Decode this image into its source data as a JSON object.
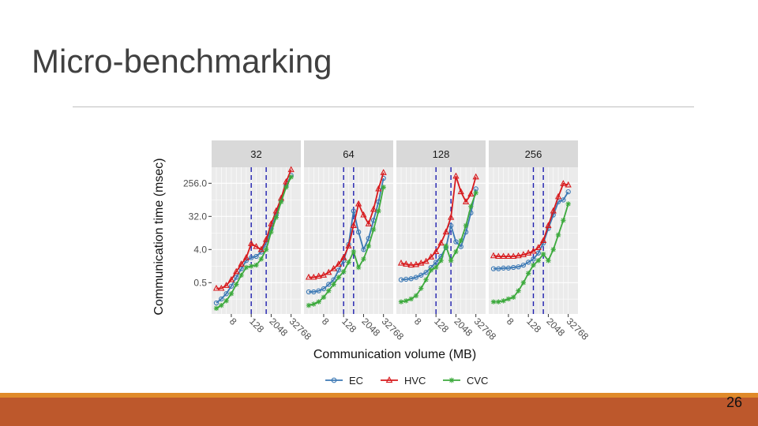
{
  "slide": {
    "title": "Micro-benchmarking",
    "page_number": "26"
  },
  "chart_data": {
    "type": "line",
    "facets": [
      "32",
      "64",
      "128",
      "256"
    ],
    "xlabel": "Communication volume (MB)",
    "ylabel": "Communication time (msec)",
    "y_scale": "log2",
    "ylim": [
      0.07,
      700
    ],
    "yticks": [
      0.5,
      4.0,
      32.0,
      256.0
    ],
    "ytick_labels": [
      "0.5",
      "4.0",
      "32.0",
      "256.0"
    ],
    "x_scale": "log2",
    "xlim": [
      1,
      65536
    ],
    "xticks": [
      8,
      128,
      2048,
      32768
    ],
    "xtick_labels": [
      "8",
      "128",
      "2048",
      "32768"
    ],
    "x": [
      1,
      2,
      4,
      8,
      16,
      32,
      64,
      128,
      256,
      512,
      1024,
      2048,
      4096,
      8192,
      16384,
      32768
    ],
    "vlines_by_facet": [
      [
        128,
        1024
      ],
      [
        128,
        512
      ],
      [
        128,
        1024
      ],
      [
        256,
        1024
      ]
    ],
    "grid": true,
    "legend_position": "bottom",
    "colors": {
      "EC": "#3b78b4",
      "HVC": "#d7191c",
      "CVC": "#3daa3d",
      "panel_bg": "#ebebeb",
      "strip_bg": "#d9d9d9",
      "vline": "#1f1fb0"
    },
    "series": [
      {
        "name": "EC",
        "marker": "circle",
        "values_by_facet": [
          [
            0.14,
            0.18,
            0.25,
            0.4,
            0.7,
            1.2,
            2.0,
            2.4,
            2.6,
            3.4,
            6.0,
            15,
            35,
            90,
            220,
            420
          ],
          [
            0.28,
            0.28,
            0.3,
            0.34,
            0.45,
            0.6,
            1.1,
            2.0,
            5.5,
            45,
            12,
            4.0,
            8.0,
            25,
            80,
            350
          ],
          [
            0.6,
            0.62,
            0.64,
            0.7,
            0.8,
            0.95,
            1.3,
            1.8,
            2.6,
            4.5,
            18,
            6.5,
            4.8,
            12,
            40,
            180
          ],
          [
            1.2,
            1.2,
            1.25,
            1.25,
            1.3,
            1.35,
            1.5,
            1.8,
            2.2,
            3.2,
            6.0,
            15,
            35,
            80,
            90,
            150
          ]
        ]
      },
      {
        "name": "HVC",
        "marker": "triangle",
        "values_by_facet": [
          [
            0.35,
            0.35,
            0.42,
            0.6,
            1.0,
            1.6,
            2.4,
            5.8,
            4.8,
            4.0,
            7.5,
            20,
            45,
            100,
            280,
            600
          ],
          [
            0.7,
            0.7,
            0.75,
            0.8,
            0.95,
            1.2,
            1.6,
            2.4,
            5.0,
            18,
            70,
            35,
            20,
            50,
            180,
            500
          ],
          [
            1.7,
            1.6,
            1.5,
            1.55,
            1.7,
            1.9,
            2.5,
            3.5,
            6.0,
            12,
            30,
            400,
            150,
            80,
            130,
            380
          ],
          [
            2.7,
            2.6,
            2.6,
            2.6,
            2.6,
            2.7,
            2.9,
            3.2,
            3.6,
            4.5,
            7.0,
            18,
            45,
            110,
            250,
            230
          ]
        ]
      },
      {
        "name": "CVC",
        "marker": "star",
        "values_by_facet": [
          [
            0.1,
            0.12,
            0.16,
            0.25,
            0.45,
            0.8,
            1.3,
            1.4,
            1.5,
            2.2,
            4.0,
            12,
            30,
            80,
            200,
            380
          ],
          [
            0.12,
            0.13,
            0.15,
            0.2,
            0.3,
            0.45,
            0.7,
            1.0,
            1.8,
            3.5,
            1.3,
            2.2,
            5.0,
            14,
            45,
            200
          ],
          [
            0.15,
            0.16,
            0.18,
            0.22,
            0.35,
            0.6,
            1.1,
            1.3,
            2.0,
            5.0,
            2.0,
            3.5,
            7.0,
            18,
            60,
            140
          ],
          [
            0.15,
            0.15,
            0.16,
            0.18,
            0.2,
            0.3,
            0.5,
            0.9,
            1.5,
            2.0,
            3.0,
            2.0,
            4.0,
            10,
            25,
            70
          ]
        ]
      }
    ]
  }
}
